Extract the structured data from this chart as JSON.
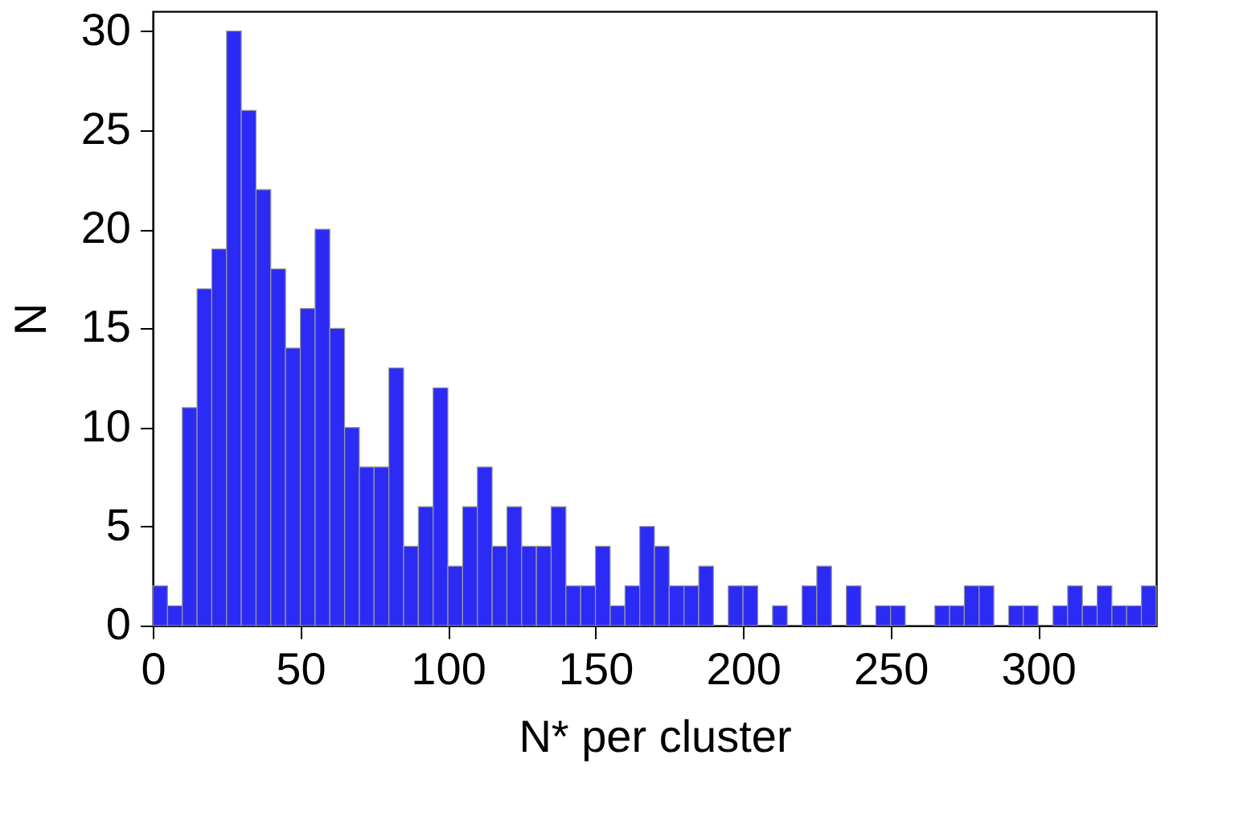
{
  "chart_data": {
    "type": "histogram",
    "xlabel": "N* per cluster",
    "ylabel": "N",
    "color": "#2b2bf5",
    "bins": [
      0,
      5,
      10,
      15,
      20,
      25,
      30,
      35,
      40,
      45,
      50,
      55,
      60,
      65,
      70,
      75,
      80,
      85,
      90,
      95,
      100,
      105,
      110,
      115,
      120,
      125,
      130,
      135,
      140,
      145,
      150,
      155,
      160,
      165,
      170,
      175,
      180,
      185,
      190,
      195,
      200,
      205,
      210,
      215,
      220,
      225,
      230,
      235,
      240,
      245,
      250,
      255,
      260,
      265,
      270,
      275,
      280,
      285,
      290,
      295,
      300,
      305,
      310,
      315,
      320,
      325,
      330,
      335,
      340
    ],
    "values": [
      2,
      1,
      11,
      17,
      19,
      30,
      26,
      22,
      18,
      14,
      16,
      20,
      15,
      10,
      8,
      8,
      13,
      4,
      6,
      12,
      3,
      6,
      8,
      4,
      6,
      4,
      4,
      6,
      2,
      2,
      4,
      1,
      2,
      5,
      4,
      2,
      2,
      3,
      0,
      2,
      2,
      0,
      1,
      0,
      2,
      3,
      0,
      2,
      0,
      1,
      1,
      0,
      0,
      1,
      1,
      2,
      2,
      0,
      1,
      1,
      0,
      1,
      2,
      1,
      2,
      1,
      1,
      2
    ],
    "xlim": [
      0,
      340
    ],
    "xticks": [
      0,
      50,
      100,
      150,
      200,
      250,
      300
    ],
    "ylim": [
      0,
      31
    ],
    "yticks": [
      0,
      5,
      10,
      15,
      20,
      25,
      30
    ],
    "grid": false
  }
}
